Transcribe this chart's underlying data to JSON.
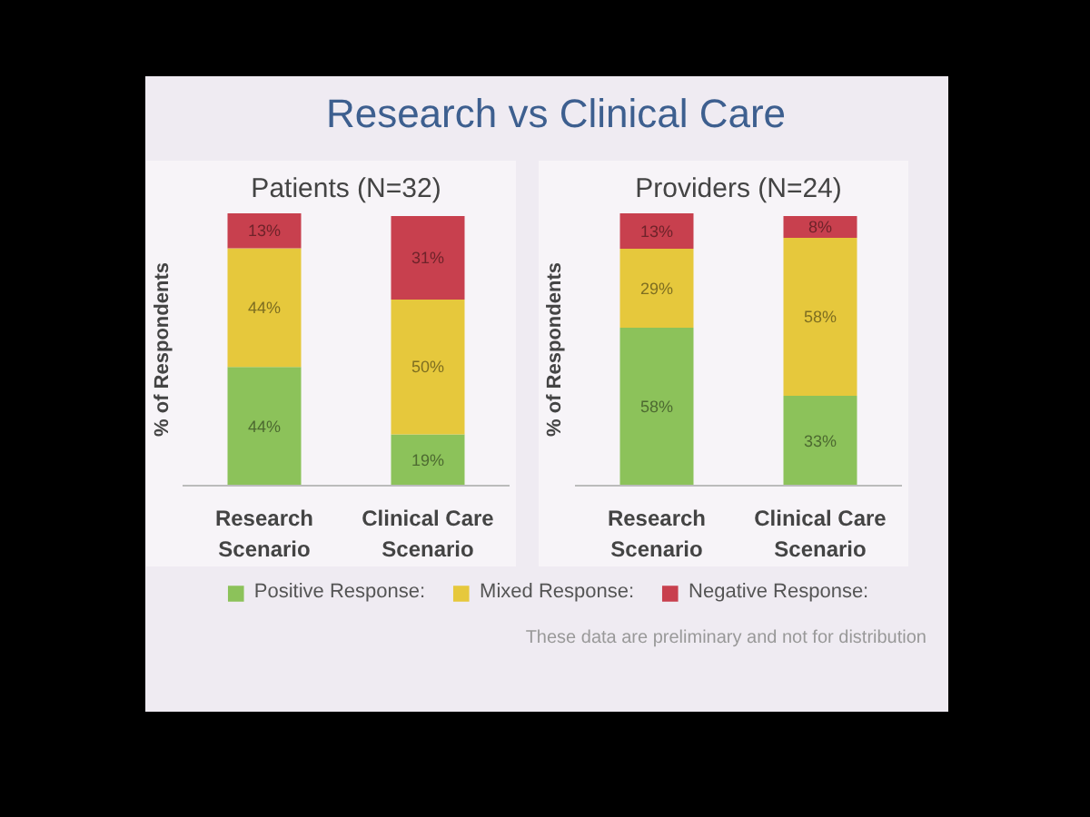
{
  "chart_data": [
    {
      "type": "bar",
      "title": "Research vs Clinical Care",
      "subtitle": "Patients (N=32)",
      "ylabel": "% of Respondents",
      "categories": [
        "Research Scenario",
        "Clinical Care Scenario"
      ],
      "stacked": true,
      "legend": "bottom",
      "series": [
        {
          "name": "Positive Response:",
          "color": "#8cc25a",
          "values": [
            44,
            19
          ],
          "value_labels": [
            "44%",
            "19%"
          ]
        },
        {
          "name": "Mixed Response:",
          "color": "#e6c83c",
          "values": [
            44,
            50
          ],
          "value_labels": [
            "44%",
            "50%"
          ]
        },
        {
          "name": "Negative Response:",
          "color": "#c8404e",
          "values": [
            13,
            31
          ],
          "value_labels": [
            "13%",
            "31%"
          ]
        }
      ]
    },
    {
      "type": "bar",
      "title": "Providers (N=24)",
      "ylabel": "% of Respondents",
      "categories": [
        "Research Scenario",
        "Clinical Care Scenario"
      ],
      "stacked": true,
      "annotations": [
        "These data are preliminary and not for distribution"
      ],
      "series": [
        {
          "color": "#8cc25a",
          "values": [
            58,
            33
          ],
          "value_labels": [
            "58%",
            "33%"
          ]
        },
        {
          "color": "#e6c83c",
          "values": [
            29,
            58
          ],
          "value_labels": [
            "29%",
            "58%"
          ]
        },
        {
          "color": "#c8404e",
          "values": [
            13,
            8
          ],
          "value_labels": [
            "13%",
            "8%"
          ]
        }
      ]
    }
  ]
}
